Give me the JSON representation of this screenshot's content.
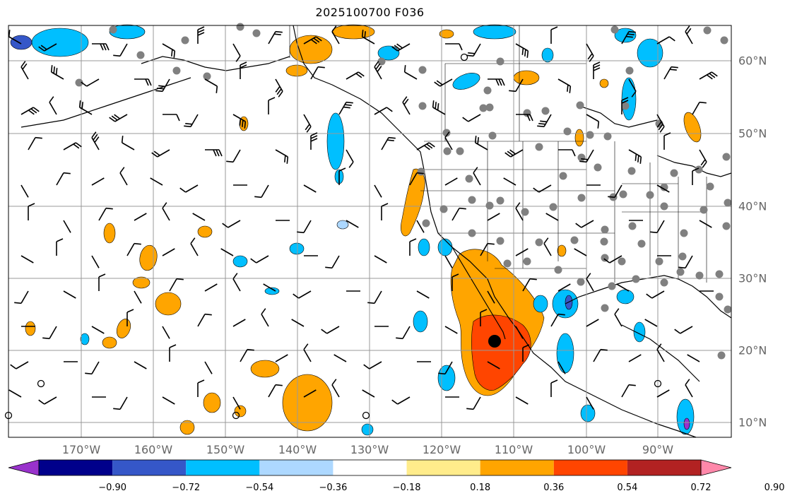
{
  "title": "2025100700 F036",
  "lon_labels": [
    "170°W",
    "160°W",
    "150°W",
    "140°W",
    "130°W",
    "120°W",
    "110°W",
    "100°W",
    "90°W"
  ],
  "lat_labels": [
    "60°N",
    "50°N",
    "40°N",
    "30°N",
    "20°N",
    "10°N"
  ],
  "colorbar": {
    "ticks": [
      "−0.90",
      "−0.72",
      "−0.54",
      "−0.36",
      "−0.18",
      "0.18",
      "0.36",
      "0.54",
      "0.72",
      "0.90"
    ],
    "colors": [
      "#9932cc",
      "#00008b",
      "#3557c8",
      "#00bfff",
      "#add8ff",
      "#ffffff",
      "#ffec8b",
      "#ffa500",
      "#ff4500",
      "#b22222",
      "#ff88aa"
    ]
  },
  "colors": {
    "orange": "#ffa500",
    "red": "#ff4500",
    "yellow": "#ffec8b",
    "light_blue": "#add8ff",
    "cyan": "#00bfff",
    "blue": "#3557c8",
    "purple": "#9932cc",
    "gridline": "#999999",
    "station_dot": "#808080"
  }
}
